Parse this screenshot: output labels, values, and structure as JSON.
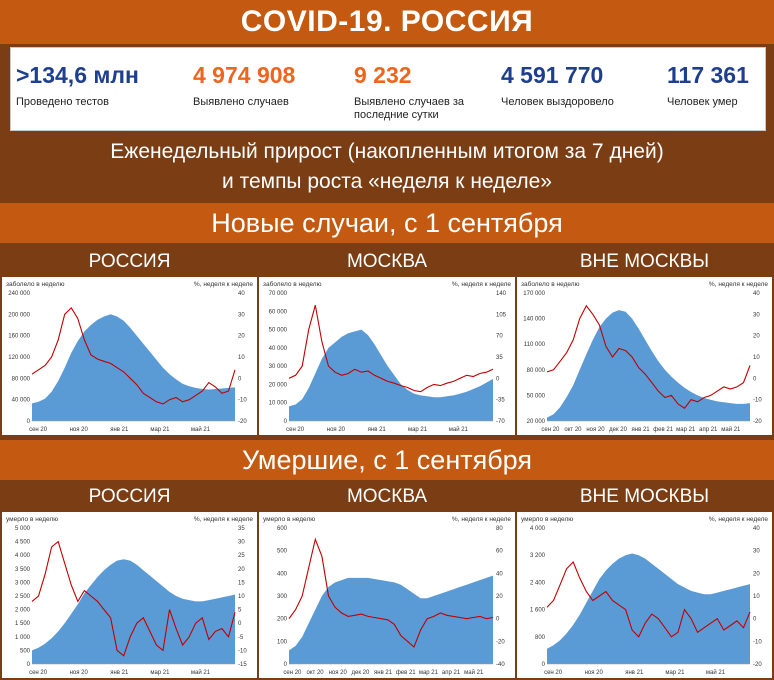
{
  "header": {
    "title": "COVID-19. РОССИЯ"
  },
  "stats": [
    {
      "value": ">134,6 млн",
      "label": "Проведено тестов",
      "color": "#1e3f8f"
    },
    {
      "value": "4 974 908",
      "label": "Выявлено случаев",
      "color": "#f0641e"
    },
    {
      "value": "9 232",
      "label": "Выявлено случаев за последние сутки",
      "color": "#f0641e"
    },
    {
      "value": "4 591 770",
      "label": "Человек выздоровело",
      "color": "#1e3f8f"
    },
    {
      "value": "117 361",
      "label": "Человек умер",
      "color": "#1e3f8f"
    }
  ],
  "subtitle": {
    "line1": "Еженедельный прирост (накопленным итогом за 7 дней)",
    "line2": "и темпы роста «неделя к неделе»"
  },
  "sections": {
    "cases": "Новые случаи, с 1 сентября",
    "deaths": "Умершие, с 1 сентября"
  },
  "regions": {
    "russia": "РОССИЯ",
    "moscow": "МОСКВА",
    "outside": "ВНЕ МОСКВЫ"
  },
  "colors": {
    "area": "#5b9bd5",
    "line": "#c00000",
    "orange": "#c45a11",
    "brown": "#7a3d14"
  },
  "chart_data": [
    {
      "id": "cases-russia",
      "type": "area",
      "left_label": "заболело в неделю",
      "right_label": "%, неделя к неделе",
      "x_ticks": [
        "сен 20",
        "ноя 20",
        "янв 21",
        "мар 21",
        "май 21"
      ],
      "y_left": {
        "ticks": [
          "0",
          "40 000",
          "80 000",
          "120 000",
          "160 000",
          "200 000",
          "240 000"
        ],
        "min": 0,
        "max": 240000
      },
      "y_right": {
        "ticks": [
          "-20",
          "-10",
          "0",
          "10",
          "20",
          "30",
          "40"
        ],
        "min": -20,
        "max": 40
      },
      "series": [
        {
          "kind": "area",
          "values": [
            33000,
            36000,
            42000,
            55000,
            75000,
            100000,
            128000,
            150000,
            168000,
            180000,
            190000,
            196000,
            200000,
            196000,
            188000,
            175000,
            160000,
            145000,
            130000,
            115000,
            100000,
            88000,
            78000,
            70000,
            65000,
            62000,
            60000,
            59000,
            60000,
            61000,
            62000,
            63000
          ]
        },
        {
          "kind": "line",
          "values": [
            2,
            4,
            6,
            10,
            18,
            30,
            33,
            28,
            18,
            11,
            9,
            8,
            7,
            5,
            3,
            0,
            -3,
            -7,
            -9,
            -11,
            -12,
            -10,
            -9,
            -11,
            -10,
            -8,
            -6,
            -2,
            -4,
            -7,
            -6,
            4
          ]
        }
      ]
    },
    {
      "id": "cases-moscow",
      "type": "area",
      "left_label": "заболело в неделю",
      "right_label": "%, неделя к неделе",
      "x_ticks": [
        "сен 20",
        "ноя 20",
        "янв 21",
        "мар 21",
        "май 21"
      ],
      "y_left": {
        "ticks": [
          "0",
          "10 000",
          "20 000",
          "30 000",
          "40 000",
          "50 000",
          "60 000",
          "70 000"
        ],
        "min": 0,
        "max": 70000
      },
      "y_right": {
        "ticks": [
          "-70",
          "-35",
          "0",
          "35",
          "70",
          "105",
          "140"
        ],
        "min": -70,
        "max": 140
      },
      "series": [
        {
          "kind": "area",
          "values": [
            8000,
            9000,
            12000,
            18000,
            26000,
            34000,
            40000,
            43000,
            46000,
            48000,
            49000,
            50000,
            47000,
            42000,
            36000,
            30000,
            25000,
            20000,
            17000,
            15000,
            14000,
            13500,
            13000,
            13000,
            13500,
            14000,
            15000,
            16000,
            17500,
            19000,
            21000,
            23000
          ]
        },
        {
          "kind": "line",
          "values": [
            0,
            5,
            20,
            80,
            120,
            60,
            20,
            10,
            5,
            8,
            15,
            10,
            12,
            5,
            0,
            -5,
            -8,
            -12,
            -15,
            -20,
            -22,
            -15,
            -10,
            -12,
            -8,
            -5,
            0,
            5,
            3,
            8,
            10,
            15
          ]
        }
      ]
    },
    {
      "id": "cases-outside",
      "type": "area",
      "left_label": "заболело в неделю",
      "right_label": "%, неделя к неделе",
      "x_ticks": [
        "сен 20",
        "окт 20",
        "ноя 20",
        "дек 20",
        "янв 21",
        "фев 21",
        "мар 21",
        "апр 21",
        "май 21"
      ],
      "y_left": {
        "ticks": [
          "20 000",
          "50 000",
          "80 000",
          "110 000",
          "140 000",
          "170 000"
        ],
        "min": 20000,
        "max": 170000
      },
      "y_right": {
        "ticks": [
          "-20",
          "-10",
          "0",
          "10",
          "20",
          "30",
          "40"
        ],
        "min": -20,
        "max": 40
      },
      "series": [
        {
          "kind": "area",
          "values": [
            24000,
            28000,
            36000,
            48000,
            62000,
            80000,
            98000,
            115000,
            130000,
            140000,
            147000,
            150000,
            148000,
            140000,
            128000,
            115000,
            102000,
            90000,
            80000,
            72000,
            65000,
            59000,
            54000,
            50000,
            47000,
            45000,
            43000,
            42000,
            41000,
            40000,
            40000,
            41000
          ]
        },
        {
          "kind": "line",
          "values": [
            3,
            4,
            8,
            12,
            18,
            28,
            34,
            30,
            25,
            15,
            10,
            14,
            13,
            10,
            5,
            2,
            -2,
            -6,
            -9,
            -8,
            -12,
            -14,
            -10,
            -11,
            -9,
            -8,
            -6,
            -4,
            -5,
            -4,
            -2,
            6
          ]
        }
      ]
    },
    {
      "id": "deaths-russia",
      "type": "area",
      "left_label": "умерло в неделю",
      "right_label": "%, неделя к неделе",
      "x_ticks": [
        "сен 20",
        "ноя 20",
        "янв 21",
        "мар 21",
        "май 21"
      ],
      "y_left": {
        "ticks": [
          "0",
          "500",
          "1 000",
          "1 500",
          "2 000",
          "2 500",
          "3 000",
          "3 500",
          "4 000",
          "4 500",
          "5 000"
        ],
        "min": 0,
        "max": 5000
      },
      "y_right": {
        "ticks": [
          "-15",
          "-10",
          "-5",
          "0",
          "5",
          "10",
          "15",
          "20",
          "25",
          "30",
          "35"
        ],
        "min": -15,
        "max": 35
      },
      "series": [
        {
          "kind": "area",
          "values": [
            500,
            600,
            750,
            950,
            1200,
            1500,
            1850,
            2200,
            2600,
            2900,
            3200,
            3450,
            3650,
            3800,
            3850,
            3800,
            3650,
            3450,
            3250,
            3050,
            2850,
            2650,
            2500,
            2400,
            2350,
            2300,
            2300,
            2350,
            2400,
            2450,
            2500,
            2550
          ]
        },
        {
          "kind": "line",
          "values": [
            8,
            10,
            18,
            28,
            30,
            22,
            14,
            8,
            12,
            10,
            8,
            5,
            2,
            -10,
            -12,
            -5,
            0,
            2,
            -3,
            -8,
            -10,
            5,
            -2,
            -8,
            -5,
            0,
            2,
            -6,
            -3,
            -2,
            -5,
            4
          ]
        }
      ]
    },
    {
      "id": "deaths-moscow",
      "type": "area",
      "left_label": "умерло в неделю",
      "right_label": "%, неделя к неделе",
      "x_ticks": [
        "сен 20",
        "окт 20",
        "ноя 20",
        "дек 20",
        "янв 21",
        "фев 21",
        "мар 21",
        "апр 21",
        "май 21"
      ],
      "y_left": {
        "ticks": [
          "0",
          "100",
          "200",
          "300",
          "400",
          "500",
          "600"
        ],
        "min": 0,
        "max": 600
      },
      "y_right": {
        "ticks": [
          "-40",
          "-20",
          "0",
          "20",
          "40",
          "60",
          "80"
        ],
        "min": -40,
        "max": 80
      },
      "series": [
        {
          "kind": "area",
          "values": [
            60,
            80,
            120,
            180,
            240,
            300,
            340,
            360,
            370,
            380,
            380,
            380,
            380,
            375,
            370,
            365,
            360,
            350,
            330,
            310,
            290,
            290,
            300,
            310,
            320,
            330,
            340,
            350,
            360,
            370,
            380,
            390
          ]
        },
        {
          "kind": "line",
          "values": [
            0,
            8,
            20,
            45,
            70,
            55,
            20,
            10,
            5,
            2,
            3,
            4,
            2,
            1,
            0,
            -1,
            -5,
            -15,
            -20,
            -25,
            -10,
            0,
            2,
            5,
            3,
            2,
            1,
            0,
            1,
            2,
            0,
            1
          ]
        }
      ]
    },
    {
      "id": "deaths-outside",
      "type": "area",
      "left_label": "умерло в неделю",
      "right_label": "%, неделя к неделе",
      "x_ticks": [
        "сен 20",
        "ноя 20",
        "янв 21",
        "мар 21",
        "май 21"
      ],
      "y_left": {
        "ticks": [
          "0",
          "800",
          "1 600",
          "2 400",
          "3 200",
          "4 000"
        ],
        "min": 0,
        "max": 4000
      },
      "y_right": {
        "ticks": [
          "-20",
          "-10",
          "0",
          "10",
          "20",
          "30",
          "40"
        ],
        "min": -20,
        "max": 40
      },
      "series": [
        {
          "kind": "area",
          "values": [
            450,
            550,
            700,
            900,
            1150,
            1450,
            1800,
            2150,
            2500,
            2750,
            2950,
            3100,
            3200,
            3250,
            3200,
            3100,
            2950,
            2800,
            2650,
            2500,
            2350,
            2250,
            2150,
            2100,
            2050,
            2050,
            2100,
            2150,
            2200,
            2250,
            2300,
            2350
          ]
        },
        {
          "kind": "line",
          "values": [
            5,
            8,
            15,
            22,
            25,
            18,
            12,
            8,
            10,
            12,
            8,
            6,
            4,
            -5,
            -8,
            -2,
            2,
            0,
            -4,
            -8,
            -6,
            4,
            0,
            -6,
            -4,
            -2,
            0,
            -5,
            -3,
            -1,
            -4,
            3
          ]
        }
      ]
    }
  ]
}
